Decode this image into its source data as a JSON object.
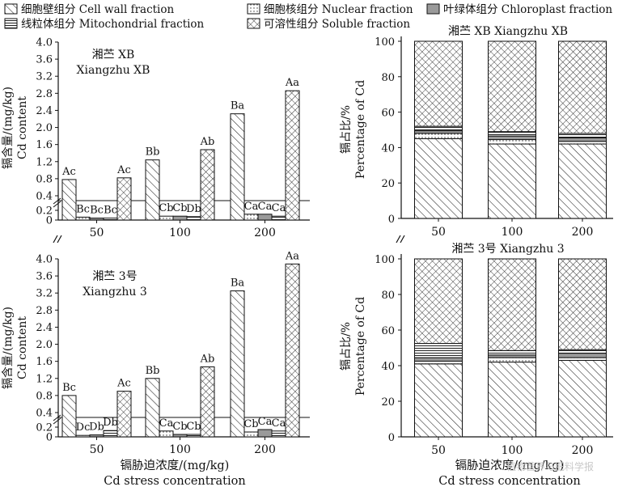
{
  "legend": [
    {
      "key": "cell_wall",
      "label": "细胞壁组分 Cell wall fraction",
      "pattern": "diag"
    },
    {
      "key": "nuclear",
      "label": "细胞核组分 Nuclear fraction",
      "pattern": "dots"
    },
    {
      "key": "chloroplast",
      "label": "叶绿体组分 Chloroplast fraction",
      "pattern": "gray"
    },
    {
      "key": "mito",
      "label": "线粒体组分 Mitochondrial fraction",
      "pattern": "hlines"
    },
    {
      "key": "soluble",
      "label": "可溶性组分 Soluble fraction",
      "pattern": "cross"
    }
  ],
  "xlabel_cn": "镉胁迫浓度/(mg/kg)",
  "xlabel_en": "Cd stress concentration",
  "watermark": "植物营养与肥料学报",
  "chart_data": [
    {
      "type": "bar",
      "panel": "left-top",
      "variety_cn": "湘苎 XB",
      "variety_en": "Xiangzhu XB",
      "ylabel_cn": "镉含量/(mg/kg)",
      "ylabel_en": "Cd content",
      "categories": [
        "50",
        "100",
        "200"
      ],
      "yticks": [
        "0",
        "0.2",
        "0.4",
        "0.8",
        "1.2",
        "1.6",
        "2.0",
        "2.4",
        "2.8",
        "3.2",
        "3.6",
        "4.0"
      ],
      "axis_break": [
        0.3,
        0.4
      ],
      "series": [
        {
          "name": "Cell wall fraction",
          "values": [
            0.78,
            1.24,
            2.32
          ],
          "letters": [
            "Ac",
            "Bb",
            "Ba"
          ]
        },
        {
          "name": "Nuclear fraction",
          "values": [
            0.06,
            0.08,
            0.12
          ],
          "letters": [
            "Bc",
            "Cb",
            "Ca"
          ]
        },
        {
          "name": "Chloroplast fraction",
          "values": [
            0.04,
            0.08,
            0.12
          ],
          "letters": [
            "Bc",
            "Cb",
            "Ca"
          ]
        },
        {
          "name": "Mitochondrial fraction",
          "values": [
            0.04,
            0.07,
            0.08
          ],
          "letters": [
            "Bc",
            "Db",
            "Ca"
          ]
        },
        {
          "name": "Soluble fraction",
          "values": [
            0.82,
            1.48,
            2.86
          ],
          "letters": [
            "Ac",
            "Ab",
            "Aa"
          ]
        }
      ]
    },
    {
      "type": "bar",
      "panel": "left-bottom",
      "variety_cn": "湘苎 3号",
      "variety_en": "Xiangzhu 3",
      "ylabel_cn": "镉含量/(mg/kg)",
      "ylabel_en": "Cd content",
      "categories": [
        "50",
        "100",
        "200"
      ],
      "yticks": [
        "0",
        "0.2",
        "0.4",
        "0.8",
        "1.2",
        "1.6",
        "2.0",
        "2.4",
        "2.8",
        "3.2",
        "3.6",
        "4.0"
      ],
      "axis_break": [
        0.3,
        0.4
      ],
      "series": [
        {
          "name": "Cell wall fraction",
          "values": [
            0.8,
            1.2,
            3.25
          ],
          "letters": [
            "Bc",
            "Bb",
            "Ba"
          ]
        },
        {
          "name": "Nuclear fraction",
          "values": [
            0.03,
            0.12,
            0.1
          ],
          "letters": [
            "Dc",
            "Ca",
            "Cb"
          ]
        },
        {
          "name": "Chloroplast fraction",
          "values": [
            0.04,
            0.05,
            0.15
          ],
          "letters": [
            "Db",
            "Cb",
            "Ca"
          ]
        },
        {
          "name": "Mitochondrial fraction",
          "values": [
            0.13,
            0.05,
            0.12
          ],
          "letters": [
            "Db",
            "Cb",
            "Ca"
          ]
        },
        {
          "name": "Soluble fraction",
          "values": [
            0.9,
            1.47,
            3.88
          ],
          "letters": [
            "Ac",
            "Ab",
            "Aa"
          ]
        }
      ]
    },
    {
      "type": "stacked-bar",
      "panel": "right-top",
      "title": "湘苎 XB Xiangzhu XB",
      "ylabel_cn": "镉占比/%",
      "ylabel_en": "Percentage of Cd",
      "categories": [
        "50",
        "100",
        "200"
      ],
      "yticks": [
        "0",
        "20",
        "40",
        "60",
        "80",
        "100"
      ],
      "ylim": [
        0,
        100
      ],
      "series": [
        {
          "name": "Cell wall fraction",
          "values": [
            45,
            42,
            42
          ]
        },
        {
          "name": "Nuclear fraction",
          "values": [
            3,
            2.5,
            1.5
          ]
        },
        {
          "name": "Chloroplast fraction",
          "values": [
            1.5,
            2,
            2
          ]
        },
        {
          "name": "Mitochondrial fraction",
          "values": [
            2.5,
            2.5,
            2.5
          ]
        },
        {
          "name": "Soluble fraction",
          "values": [
            48,
            51,
            52
          ]
        }
      ]
    },
    {
      "type": "stacked-bar",
      "panel": "right-bottom",
      "title": "湘苎 3号 Xiangzhu 3",
      "ylabel_cn": "镉占比/%",
      "ylabel_en": "Percentage of Cd",
      "categories": [
        "50",
        "100",
        "200"
      ],
      "yticks": [
        "0",
        "20",
        "40",
        "60",
        "80",
        "100"
      ],
      "ylim": [
        0,
        100
      ],
      "series": [
        {
          "name": "Cell wall fraction",
          "values": [
            41,
            42,
            43
          ]
        },
        {
          "name": "Nuclear fraction",
          "values": [
            1.5,
            2.5,
            1.5
          ]
        },
        {
          "name": "Chloroplast fraction",
          "values": [
            2,
            1.5,
            2.5
          ]
        },
        {
          "name": "Mitochondrial fraction",
          "values": [
            8,
            2.5,
            2
          ]
        },
        {
          "name": "Soluble fraction",
          "values": [
            47.5,
            51.5,
            51
          ]
        }
      ]
    }
  ]
}
